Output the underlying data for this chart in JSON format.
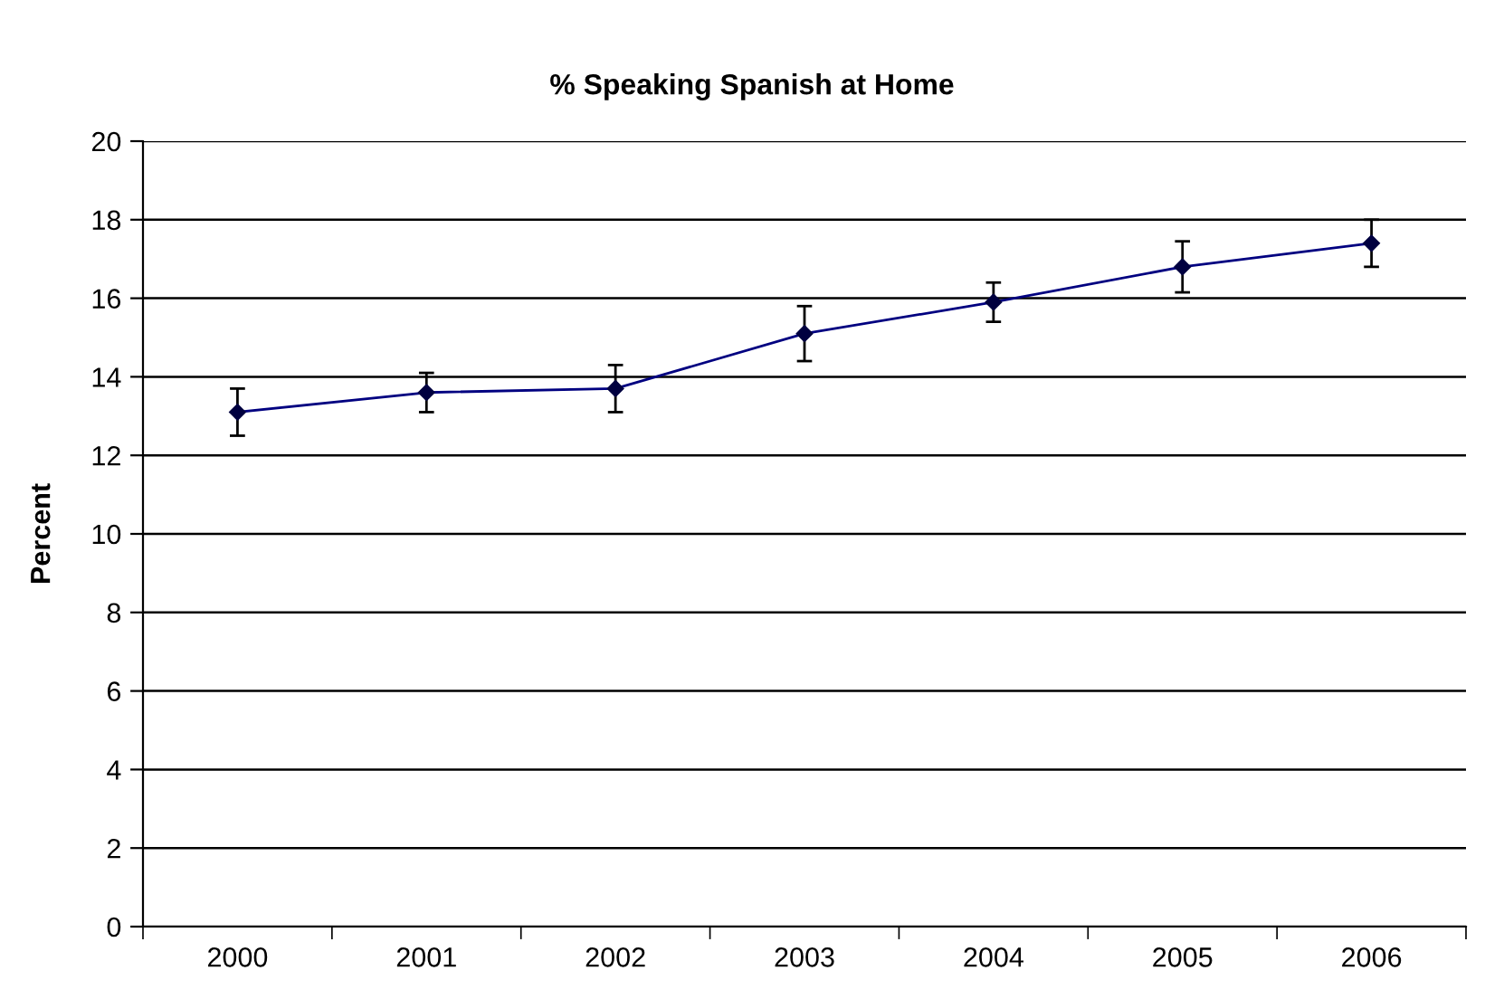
{
  "chart_data": {
    "type": "line",
    "title": "% Speaking Spanish at Home",
    "ylabel": "Percent",
    "categories": [
      "2000",
      "2001",
      "2002",
      "2003",
      "2004",
      "2005",
      "2006"
    ],
    "series": [
      {
        "color": "#000080",
        "values": [
          13.1,
          13.6,
          13.7,
          15.1,
          15.9,
          16.8,
          17.4
        ],
        "errors": [
          0.6,
          0.5,
          0.6,
          0.7,
          0.5,
          0.65,
          0.6
        ]
      }
    ],
    "ylim": [
      0,
      20
    ],
    "yticks": [
      0,
      2,
      4,
      6,
      8,
      10,
      12,
      14,
      16,
      18,
      20
    ],
    "grid": "y",
    "marker": "diamond",
    "line_style": "solid"
  }
}
